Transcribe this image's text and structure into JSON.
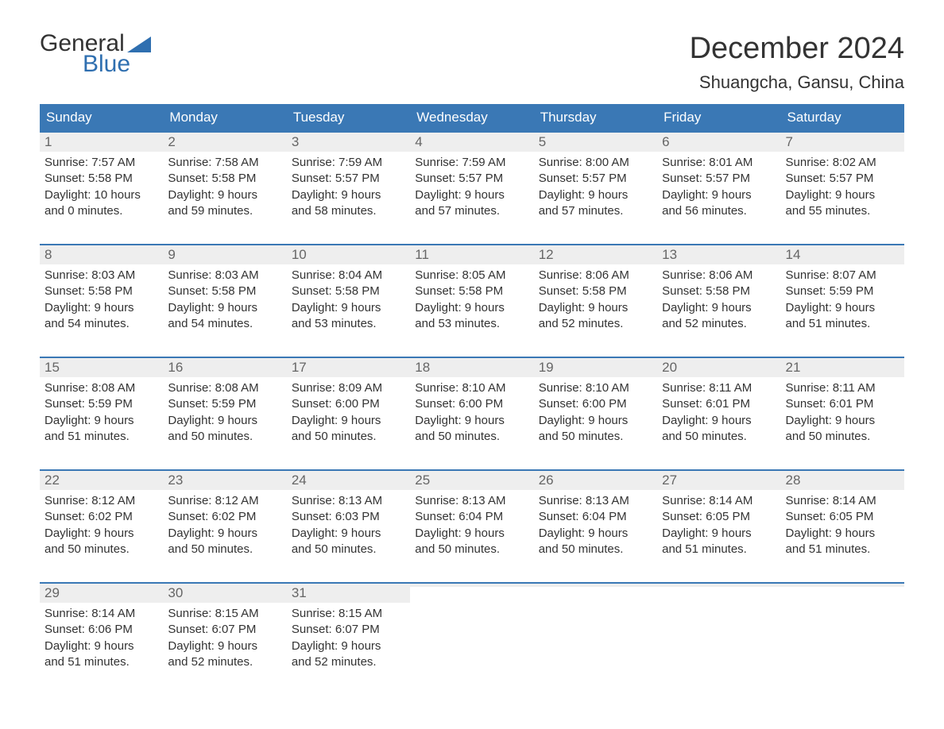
{
  "brand": {
    "word1": "General",
    "word2": "Blue",
    "flag_color": "#2f6fb0",
    "text_color_dark": "#333333",
    "text_color_accent": "#2f6fb0"
  },
  "header": {
    "month_title": "December 2024",
    "location": "Shuangcha, Gansu, China"
  },
  "colors": {
    "header_bg": "#3a78b5",
    "header_text": "#ffffff",
    "daynum_bg": "#eeeeee",
    "daynum_text": "#666666",
    "body_text": "#333333",
    "week_border": "#3a78b5",
    "page_bg": "#ffffff"
  },
  "typography": {
    "month_title_fontsize": 38,
    "location_fontsize": 22,
    "weekday_fontsize": 17,
    "daynum_fontsize": 17,
    "body_fontsize": 15,
    "logo_fontsize": 30
  },
  "weekdays": [
    "Sunday",
    "Monday",
    "Tuesday",
    "Wednesday",
    "Thursday",
    "Friday",
    "Saturday"
  ],
  "weeks": [
    [
      {
        "day": "1",
        "sunrise": "Sunrise: 7:57 AM",
        "sunset": "Sunset: 5:58 PM",
        "dl1": "Daylight: 10 hours",
        "dl2": "and 0 minutes."
      },
      {
        "day": "2",
        "sunrise": "Sunrise: 7:58 AM",
        "sunset": "Sunset: 5:58 PM",
        "dl1": "Daylight: 9 hours",
        "dl2": "and 59 minutes."
      },
      {
        "day": "3",
        "sunrise": "Sunrise: 7:59 AM",
        "sunset": "Sunset: 5:57 PM",
        "dl1": "Daylight: 9 hours",
        "dl2": "and 58 minutes."
      },
      {
        "day": "4",
        "sunrise": "Sunrise: 7:59 AM",
        "sunset": "Sunset: 5:57 PM",
        "dl1": "Daylight: 9 hours",
        "dl2": "and 57 minutes."
      },
      {
        "day": "5",
        "sunrise": "Sunrise: 8:00 AM",
        "sunset": "Sunset: 5:57 PM",
        "dl1": "Daylight: 9 hours",
        "dl2": "and 57 minutes."
      },
      {
        "day": "6",
        "sunrise": "Sunrise: 8:01 AM",
        "sunset": "Sunset: 5:57 PM",
        "dl1": "Daylight: 9 hours",
        "dl2": "and 56 minutes."
      },
      {
        "day": "7",
        "sunrise": "Sunrise: 8:02 AM",
        "sunset": "Sunset: 5:57 PM",
        "dl1": "Daylight: 9 hours",
        "dl2": "and 55 minutes."
      }
    ],
    [
      {
        "day": "8",
        "sunrise": "Sunrise: 8:03 AM",
        "sunset": "Sunset: 5:58 PM",
        "dl1": "Daylight: 9 hours",
        "dl2": "and 54 minutes."
      },
      {
        "day": "9",
        "sunrise": "Sunrise: 8:03 AM",
        "sunset": "Sunset: 5:58 PM",
        "dl1": "Daylight: 9 hours",
        "dl2": "and 54 minutes."
      },
      {
        "day": "10",
        "sunrise": "Sunrise: 8:04 AM",
        "sunset": "Sunset: 5:58 PM",
        "dl1": "Daylight: 9 hours",
        "dl2": "and 53 minutes."
      },
      {
        "day": "11",
        "sunrise": "Sunrise: 8:05 AM",
        "sunset": "Sunset: 5:58 PM",
        "dl1": "Daylight: 9 hours",
        "dl2": "and 53 minutes."
      },
      {
        "day": "12",
        "sunrise": "Sunrise: 8:06 AM",
        "sunset": "Sunset: 5:58 PM",
        "dl1": "Daylight: 9 hours",
        "dl2": "and 52 minutes."
      },
      {
        "day": "13",
        "sunrise": "Sunrise: 8:06 AM",
        "sunset": "Sunset: 5:58 PM",
        "dl1": "Daylight: 9 hours",
        "dl2": "and 52 minutes."
      },
      {
        "day": "14",
        "sunrise": "Sunrise: 8:07 AM",
        "sunset": "Sunset: 5:59 PM",
        "dl1": "Daylight: 9 hours",
        "dl2": "and 51 minutes."
      }
    ],
    [
      {
        "day": "15",
        "sunrise": "Sunrise: 8:08 AM",
        "sunset": "Sunset: 5:59 PM",
        "dl1": "Daylight: 9 hours",
        "dl2": "and 51 minutes."
      },
      {
        "day": "16",
        "sunrise": "Sunrise: 8:08 AM",
        "sunset": "Sunset: 5:59 PM",
        "dl1": "Daylight: 9 hours",
        "dl2": "and 50 minutes."
      },
      {
        "day": "17",
        "sunrise": "Sunrise: 8:09 AM",
        "sunset": "Sunset: 6:00 PM",
        "dl1": "Daylight: 9 hours",
        "dl2": "and 50 minutes."
      },
      {
        "day": "18",
        "sunrise": "Sunrise: 8:10 AM",
        "sunset": "Sunset: 6:00 PM",
        "dl1": "Daylight: 9 hours",
        "dl2": "and 50 minutes."
      },
      {
        "day": "19",
        "sunrise": "Sunrise: 8:10 AM",
        "sunset": "Sunset: 6:00 PM",
        "dl1": "Daylight: 9 hours",
        "dl2": "and 50 minutes."
      },
      {
        "day": "20",
        "sunrise": "Sunrise: 8:11 AM",
        "sunset": "Sunset: 6:01 PM",
        "dl1": "Daylight: 9 hours",
        "dl2": "and 50 minutes."
      },
      {
        "day": "21",
        "sunrise": "Sunrise: 8:11 AM",
        "sunset": "Sunset: 6:01 PM",
        "dl1": "Daylight: 9 hours",
        "dl2": "and 50 minutes."
      }
    ],
    [
      {
        "day": "22",
        "sunrise": "Sunrise: 8:12 AM",
        "sunset": "Sunset: 6:02 PM",
        "dl1": "Daylight: 9 hours",
        "dl2": "and 50 minutes."
      },
      {
        "day": "23",
        "sunrise": "Sunrise: 8:12 AM",
        "sunset": "Sunset: 6:02 PM",
        "dl1": "Daylight: 9 hours",
        "dl2": "and 50 minutes."
      },
      {
        "day": "24",
        "sunrise": "Sunrise: 8:13 AM",
        "sunset": "Sunset: 6:03 PM",
        "dl1": "Daylight: 9 hours",
        "dl2": "and 50 minutes."
      },
      {
        "day": "25",
        "sunrise": "Sunrise: 8:13 AM",
        "sunset": "Sunset: 6:04 PM",
        "dl1": "Daylight: 9 hours",
        "dl2": "and 50 minutes."
      },
      {
        "day": "26",
        "sunrise": "Sunrise: 8:13 AM",
        "sunset": "Sunset: 6:04 PM",
        "dl1": "Daylight: 9 hours",
        "dl2": "and 50 minutes."
      },
      {
        "day": "27",
        "sunrise": "Sunrise: 8:14 AM",
        "sunset": "Sunset: 6:05 PM",
        "dl1": "Daylight: 9 hours",
        "dl2": "and 51 minutes."
      },
      {
        "day": "28",
        "sunrise": "Sunrise: 8:14 AM",
        "sunset": "Sunset: 6:05 PM",
        "dl1": "Daylight: 9 hours",
        "dl2": "and 51 minutes."
      }
    ],
    [
      {
        "day": "29",
        "sunrise": "Sunrise: 8:14 AM",
        "sunset": "Sunset: 6:06 PM",
        "dl1": "Daylight: 9 hours",
        "dl2": "and 51 minutes."
      },
      {
        "day": "30",
        "sunrise": "Sunrise: 8:15 AM",
        "sunset": "Sunset: 6:07 PM",
        "dl1": "Daylight: 9 hours",
        "dl2": "and 52 minutes."
      },
      {
        "day": "31",
        "sunrise": "Sunrise: 8:15 AM",
        "sunset": "Sunset: 6:07 PM",
        "dl1": "Daylight: 9 hours",
        "dl2": "and 52 minutes."
      },
      {
        "empty": true
      },
      {
        "empty": true
      },
      {
        "empty": true
      },
      {
        "empty": true
      }
    ]
  ]
}
